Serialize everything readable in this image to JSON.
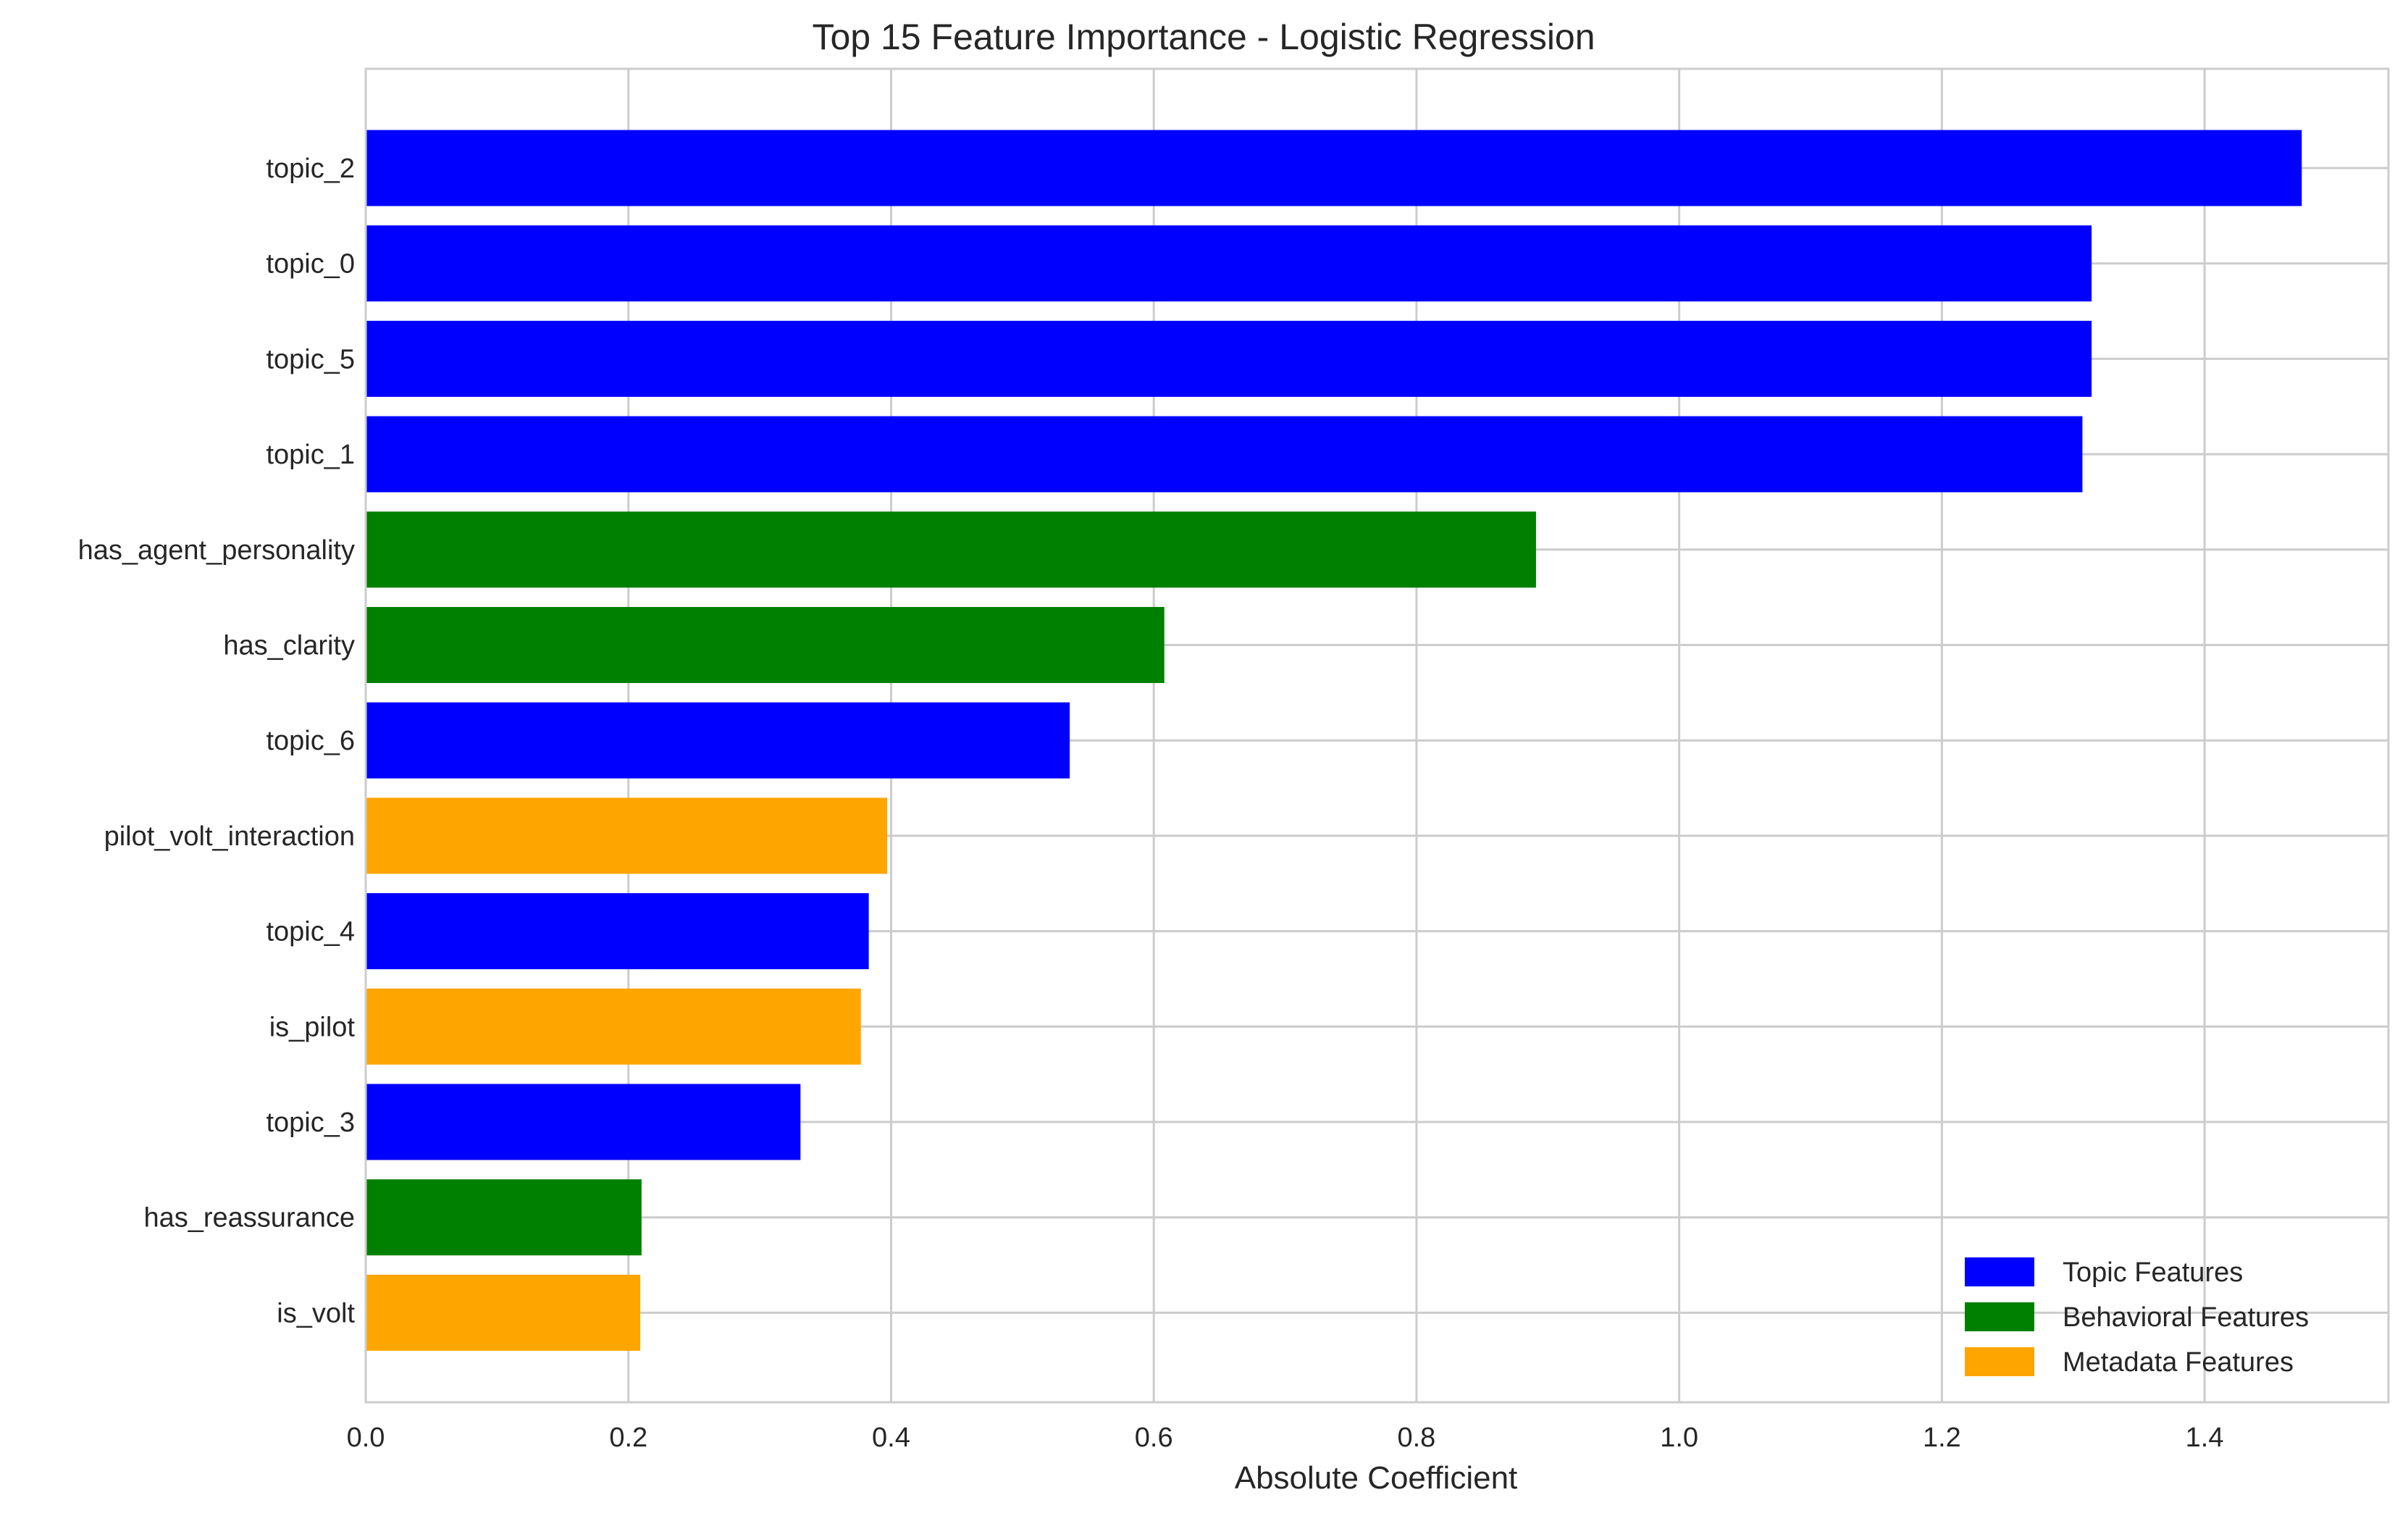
{
  "chart_data": {
    "type": "bar",
    "orientation": "horizontal",
    "title": "Top 15 Feature Importance - Logistic Regression",
    "xlabel": "Absolute Coefficient",
    "ylabel": "",
    "xlim": [
      0,
      1.54
    ],
    "xticks": [
      "0.0",
      "0.2",
      "0.4",
      "0.6",
      "0.8",
      "1.0",
      "1.2",
      "1.4"
    ],
    "grid": true,
    "legend_position": "bottom-right",
    "categories": [
      "topic_2",
      "topic_0",
      "topic_5",
      "topic_1",
      "has_agent_personality",
      "has_clarity",
      "topic_6",
      "pilot_volt_interaction",
      "topic_4",
      "is_pilot",
      "topic_3",
      "has_reassurance",
      "is_volt"
    ],
    "values": [
      1.474,
      1.314,
      1.314,
      1.307,
      0.891,
      0.608,
      0.536,
      0.397,
      0.383,
      0.377,
      0.331,
      0.21,
      0.209
    ],
    "groups": [
      "Topic Features",
      "Topic Features",
      "Topic Features",
      "Topic Features",
      "Behavioral Features",
      "Behavioral Features",
      "Topic Features",
      "Metadata Features",
      "Topic Features",
      "Metadata Features",
      "Topic Features",
      "Behavioral Features",
      "Metadata Features"
    ],
    "legend": [
      {
        "name": "Topic Features",
        "color": "#0000ff"
      },
      {
        "name": "Behavioral Features",
        "color": "#008000"
      },
      {
        "name": "Metadata Features",
        "color": "#ffa500"
      }
    ]
  }
}
